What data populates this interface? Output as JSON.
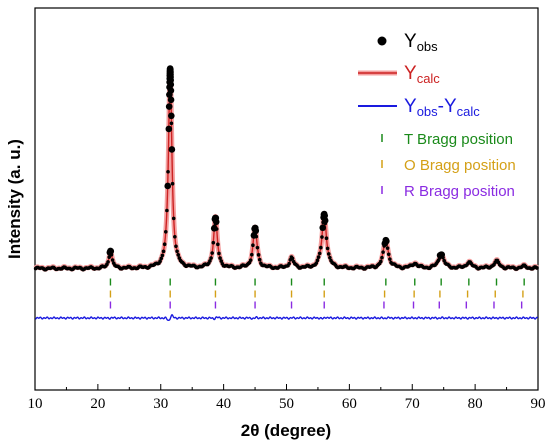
{
  "chart_data": {
    "type": "line",
    "xlabel": "2θ (degree)",
    "ylabel": "Intensity (a. u.)",
    "xlim": [
      10,
      90
    ],
    "x_ticks": [
      10,
      20,
      30,
      40,
      50,
      60,
      70,
      80,
      90
    ],
    "y_ticks_labeled": false,
    "grid": false,
    "legend_position": "top-right",
    "colors": {
      "obs": "#000000",
      "calc": "#cc2222",
      "calc_shadow": "#f4a0a0",
      "diff": "#1a1adf",
      "bragg_t": "#1a8a1a",
      "bragg_o": "#d4a017",
      "bragg_r": "#8a2be2"
    },
    "series": [
      {
        "name": "Y_obs",
        "peaks": [
          {
            "x": 22.0,
            "height": 0.09
          },
          {
            "x": 31.5,
            "height": 1.0
          },
          {
            "x": 38.7,
            "height": 0.25
          },
          {
            "x": 45.0,
            "height": 0.2
          },
          {
            "x": 50.8,
            "height": 0.05
          },
          {
            "x": 56.0,
            "height": 0.27
          },
          {
            "x": 65.8,
            "height": 0.14
          },
          {
            "x": 70.4,
            "height": 0.025
          },
          {
            "x": 74.6,
            "height": 0.07
          },
          {
            "x": 79.0,
            "height": 0.03
          },
          {
            "x": 83.4,
            "height": 0.035
          },
          {
            "x": 87.8,
            "height": 0.01
          }
        ]
      },
      {
        "name": "Y_calc"
      },
      {
        "name": "Y_obs-Y_calc"
      }
    ],
    "bragg_positions": {
      "T": [
        22.0,
        31.5,
        38.7,
        45.0,
        50.8,
        56.0,
        65.8,
        70.4,
        74.6,
        79.0,
        83.4,
        87.8
      ],
      "O": [
        22.0,
        31.5,
        38.7,
        45.0,
        50.8,
        56.0,
        65.6,
        70.3,
        74.4,
        78.8,
        83.2,
        87.6
      ],
      "R": [
        22.0,
        31.5,
        38.7,
        45.0,
        50.8,
        56.0,
        65.5,
        70.2,
        74.3,
        78.6,
        83.0,
        87.4
      ]
    }
  },
  "legend": {
    "obs": {
      "main": "Y",
      "sub": "obs"
    },
    "calc": {
      "main": "Y",
      "sub": "calc"
    },
    "diff": {
      "main1": "Y",
      "sub1": "obs",
      "dash": "-Y",
      "sub2": "calc"
    },
    "bragg_t": "T Bragg position",
    "bragg_o": "O Bragg position",
    "bragg_r": "R Bragg position"
  }
}
